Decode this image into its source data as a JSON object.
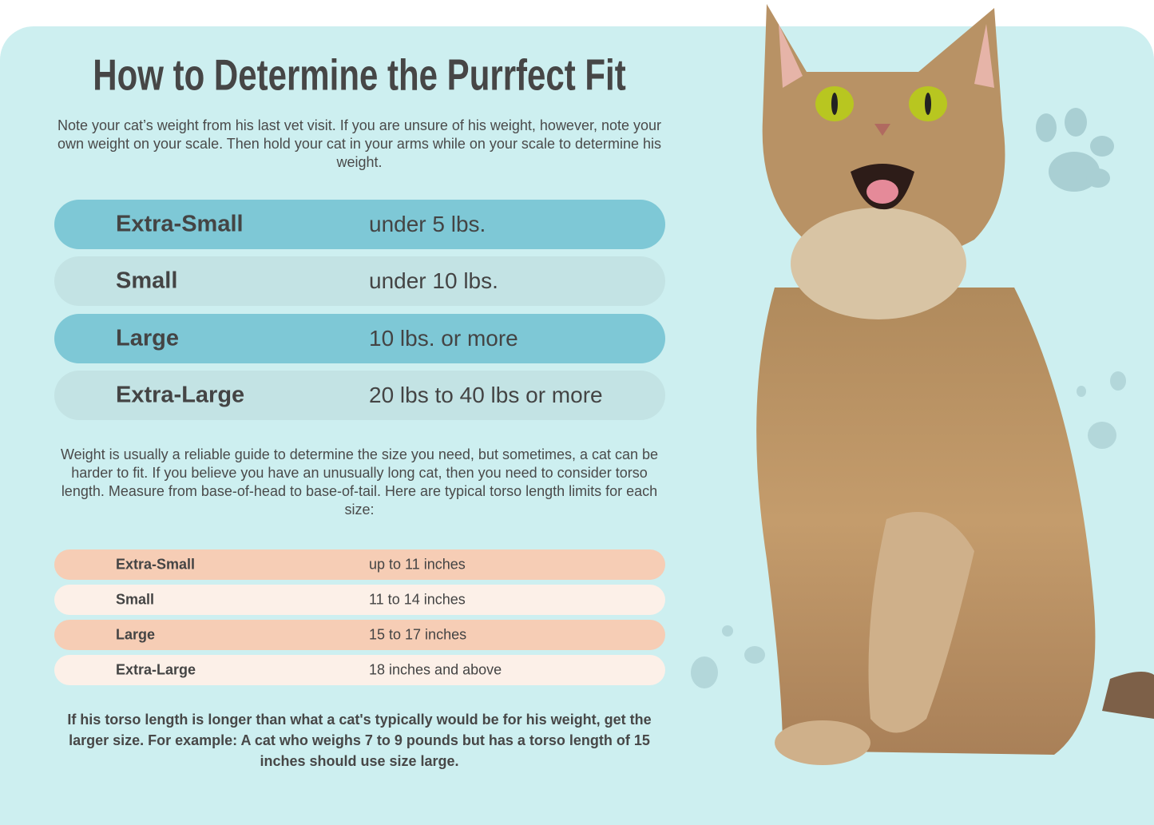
{
  "title": "How to Determine the Purrfect Fit",
  "intro": "Note your cat’s weight from his last vet visit. If you are unsure of his weight, however, note your own weight on your scale. Then hold your cat in your arms while on your scale to determine his weight.",
  "weight_table": [
    {
      "size": "Extra-Small",
      "weight": "under 5 lbs."
    },
    {
      "size": "Small",
      "weight": "under 10 lbs."
    },
    {
      "size": "Large",
      "weight": "10 lbs. or more"
    },
    {
      "size": "Extra-Large",
      "weight": "20 lbs to 40 lbs or more"
    }
  ],
  "torso_intro": "Weight is usually a reliable guide to determine the size you need, but sometimes, a cat can be harder to fit. If you believe you have an unusually long cat, then you need to consider torso length. Measure from base-of-head to base-of-tail. Here are typical torso length limits for each size:",
  "torso_table": [
    {
      "size": "Extra-Small",
      "length": "up to 11 inches"
    },
    {
      "size": "Small",
      "length": "11 to 14 inches"
    },
    {
      "size": "Large",
      "length": "15 to 17 inches"
    },
    {
      "size": "Extra-Large",
      "length": "18 inches and above"
    }
  ],
  "note": "If his torso length is longer than what a cat's typically would be for his weight, get the larger size. For example: A cat who weighs 7 to 9 pounds but has a torso length of 15 inches should use size large.",
  "colors": {
    "background": "#cdeff0",
    "weight_dark": "#7ec8d6",
    "weight_light": "#c3e3e4",
    "torso_dark": "#f6cdb5",
    "torso_light": "#fcf0e8",
    "text": "#444444"
  },
  "icons": [
    "paw-print-icon",
    "tabby-cat-photo"
  ]
}
